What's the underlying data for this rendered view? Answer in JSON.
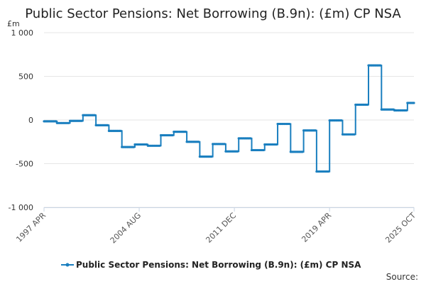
{
  "chart_data": {
    "type": "line",
    "title": "Public Sector Pensions: Net Borrowing (B.9n): (£m) CP NSA",
    "ylabel": "£m",
    "ylim": [
      -1000,
      1000
    ],
    "yticks": [
      1000,
      500,
      0,
      -500,
      -1000
    ],
    "ytick_labels": [
      "1 000",
      "500",
      "0",
      "-500",
      "-1 000"
    ],
    "xlim": [
      "1997-04",
      "2025-10"
    ],
    "xticks": [
      {
        "date": "1997-04",
        "label": "1997 APR"
      },
      {
        "date": "2004-08",
        "label": "2004 AUG"
      },
      {
        "date": "2011-12",
        "label": "2011 DEC"
      },
      {
        "date": "2019-04",
        "label": "2019 APR"
      },
      {
        "date": "2025-10",
        "label": "2025 OCT"
      }
    ],
    "grid": true,
    "legend_position": "bottom",
    "series": [
      {
        "name": "Public Sector Pensions: Net Borrowing (B.9n): (£m) CP NSA",
        "color": "#1a7fbf",
        "steps": [
          {
            "from": "1997-04",
            "to": "1998-04",
            "value": -15
          },
          {
            "from": "1998-04",
            "to": "1999-04",
            "value": -35
          },
          {
            "from": "1999-04",
            "to": "2000-04",
            "value": -10
          },
          {
            "from": "2000-04",
            "to": "2001-04",
            "value": 55
          },
          {
            "from": "2001-04",
            "to": "2002-04",
            "value": -60
          },
          {
            "from": "2002-04",
            "to": "2003-04",
            "value": -125
          },
          {
            "from": "2003-04",
            "to": "2004-04",
            "value": -310
          },
          {
            "from": "2004-04",
            "to": "2005-04",
            "value": -280
          },
          {
            "from": "2005-04",
            "to": "2006-04",
            "value": -295
          },
          {
            "from": "2006-04",
            "to": "2007-04",
            "value": -175
          },
          {
            "from": "2007-04",
            "to": "2008-04",
            "value": -135
          },
          {
            "from": "2008-04",
            "to": "2009-04",
            "value": -250
          },
          {
            "from": "2009-04",
            "to": "2010-04",
            "value": -420
          },
          {
            "from": "2010-04",
            "to": "2011-04",
            "value": -275
          },
          {
            "from": "2011-04",
            "to": "2012-04",
            "value": -360
          },
          {
            "from": "2012-04",
            "to": "2013-04",
            "value": -210
          },
          {
            "from": "2013-04",
            "to": "2014-04",
            "value": -345
          },
          {
            "from": "2014-04",
            "to": "2015-04",
            "value": -280
          },
          {
            "from": "2015-04",
            "to": "2016-04",
            "value": -45
          },
          {
            "from": "2016-04",
            "to": "2017-04",
            "value": -365
          },
          {
            "from": "2017-04",
            "to": "2018-04",
            "value": -120
          },
          {
            "from": "2018-04",
            "to": "2019-04",
            "value": -590
          },
          {
            "from": "2019-04",
            "to": "2020-04",
            "value": -5
          },
          {
            "from": "2020-04",
            "to": "2021-04",
            "value": -165
          },
          {
            "from": "2021-04",
            "to": "2022-04",
            "value": 175
          },
          {
            "from": "2022-04",
            "to": "2023-04",
            "value": 625
          },
          {
            "from": "2023-04",
            "to": "2024-04",
            "value": 120
          },
          {
            "from": "2024-04",
            "to": "2025-04",
            "value": 110
          },
          {
            "from": "2025-04",
            "to": "2025-10",
            "value": 195
          }
        ]
      }
    ]
  },
  "footer": {
    "source_label": "Source:"
  }
}
